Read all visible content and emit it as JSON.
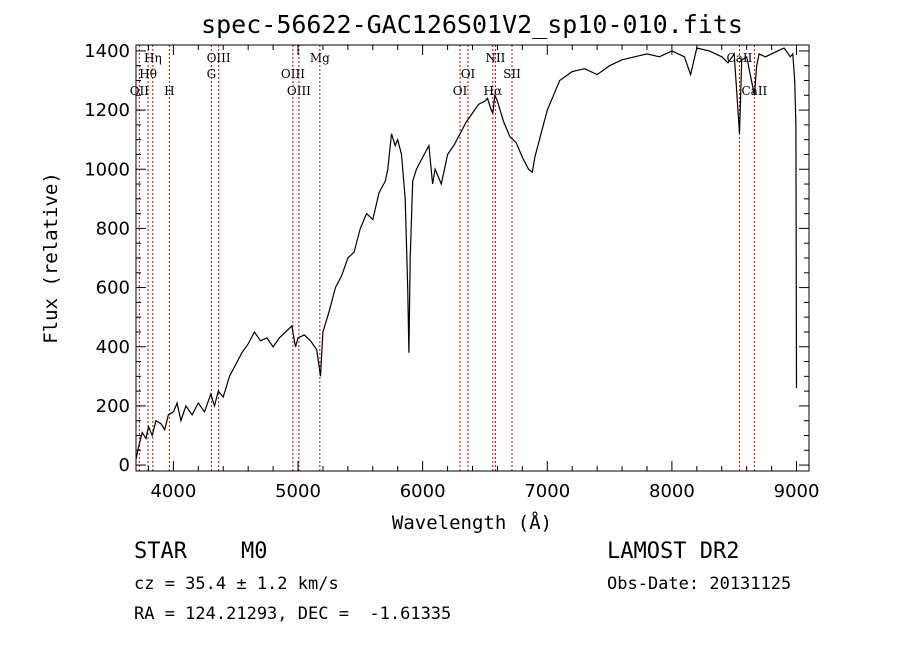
{
  "chart_data": {
    "type": "line",
    "title": "spec-56622-GAC126S01V2_sp10-010.fits",
    "xlabel": "Wavelength (Å)",
    "ylabel": "Flux (relative)",
    "xlim": [
      3700,
      9100
    ],
    "ylim": [
      -20,
      1420
    ],
    "xticks": [
      4000,
      5000,
      6000,
      7000,
      8000,
      9000
    ],
    "yticks": [
      0,
      200,
      400,
      600,
      800,
      1000,
      1200,
      1400
    ],
    "grid": false,
    "line_color": "#000000",
    "marker_color": "#cc0000",
    "series": [
      {
        "x": [
          3700,
          3720,
          3750,
          3780,
          3800,
          3830,
          3860,
          3900,
          3930,
          3960,
          4000,
          4030,
          4060,
          4100,
          4150,
          4200,
          4250,
          4300,
          4330,
          4360,
          4400,
          4450,
          4500,
          4550,
          4600,
          4650,
          4700,
          4750,
          4800,
          4850,
          4900,
          4950,
          4980,
          5000,
          5050,
          5100,
          5150,
          5180,
          5200,
          5250,
          5300,
          5350,
          5400,
          5450,
          5500,
          5550,
          5600,
          5650,
          5700,
          5720,
          5750,
          5780,
          5800,
          5830,
          5860,
          5880,
          5890,
          5900,
          5920,
          5950,
          6000,
          6050,
          6080,
          6100,
          6150,
          6200,
          6250,
          6300,
          6350,
          6400,
          6450,
          6500,
          6520,
          6550,
          6563,
          6580,
          6600,
          6650,
          6700,
          6750,
          6800,
          6850,
          6880,
          6900,
          6950,
          7000,
          7050,
          7100,
          7200,
          7300,
          7400,
          7500,
          7600,
          7700,
          7800,
          7900,
          8000,
          8100,
          8150,
          8200,
          8300,
          8400,
          8450,
          8500,
          8542,
          8560,
          8600,
          8662,
          8680,
          8700,
          8750,
          8800,
          8850,
          8900,
          8950,
          8970,
          8985,
          8995,
          9000
        ],
        "y": [
          20,
          60,
          110,
          90,
          130,
          100,
          150,
          140,
          120,
          170,
          180,
          210,
          150,
          200,
          170,
          210,
          180,
          240,
          200,
          250,
          230,
          300,
          340,
          380,
          410,
          450,
          420,
          430,
          400,
          430,
          450,
          470,
          400,
          430,
          440,
          420,
          390,
          300,
          450,
          520,
          600,
          640,
          700,
          720,
          800,
          850,
          830,
          920,
          960,
          1000,
          1120,
          1080,
          1100,
          1050,
          900,
          600,
          380,
          700,
          960,
          1000,
          1040,
          1080,
          950,
          1000,
          950,
          1050,
          1080,
          1120,
          1160,
          1190,
          1220,
          1230,
          1240,
          1200,
          1190,
          1250,
          1230,
          1160,
          1110,
          1090,
          1040,
          1000,
          990,
          1040,
          1120,
          1200,
          1250,
          1300,
          1330,
          1340,
          1320,
          1350,
          1370,
          1380,
          1390,
          1380,
          1400,
          1380,
          1320,
          1410,
          1400,
          1380,
          1360,
          1390,
          1120,
          1370,
          1380,
          1250,
          1350,
          1390,
          1380,
          1390,
          1400,
          1410,
          1380,
          1390,
          1300,
          1150,
          260
        ]
      }
    ],
    "line_markers": [
      {
        "label": "Hη",
        "x": 3835,
        "row": 1
      },
      {
        "label": "Hθ",
        "x": 3797,
        "row": 2
      },
      {
        "label": "OII",
        "x": 3727,
        "row": 3
      },
      {
        "label": "H",
        "x": 3968,
        "row": 3
      },
      {
        "label": "OIII",
        "x": 4363,
        "row": 1
      },
      {
        "label": "G",
        "x": 4305,
        "row": 2
      },
      {
        "label": "Mg",
        "x": 5175,
        "row": 1
      },
      {
        "label": "OIII",
        "x": 4959,
        "row": 2
      },
      {
        "label": "OIII",
        "x": 5007,
        "row": 3
      },
      {
        "label": "NII",
        "x": 6584,
        "row": 1
      },
      {
        "label": "OI",
        "x": 6364,
        "row": 2
      },
      {
        "label": "SII",
        "x": 6717,
        "row": 2
      },
      {
        "label": "OI",
        "x": 6300,
        "row": 3
      },
      {
        "label": "Hα",
        "x": 6563,
        "row": 3
      },
      {
        "label": "CaII",
        "x": 8542,
        "row": 1
      },
      {
        "label": "CaII",
        "x": 8662,
        "row": 3
      }
    ]
  },
  "info": {
    "object_class": "STAR",
    "subclass": "M0",
    "survey": "LAMOST DR2",
    "redshift": "cz = 35.4 ± 1.2 km/s",
    "obs_date": "Obs-Date: 20131125",
    "coords": "RA = 124.21293, DEC =  -1.61335"
  }
}
